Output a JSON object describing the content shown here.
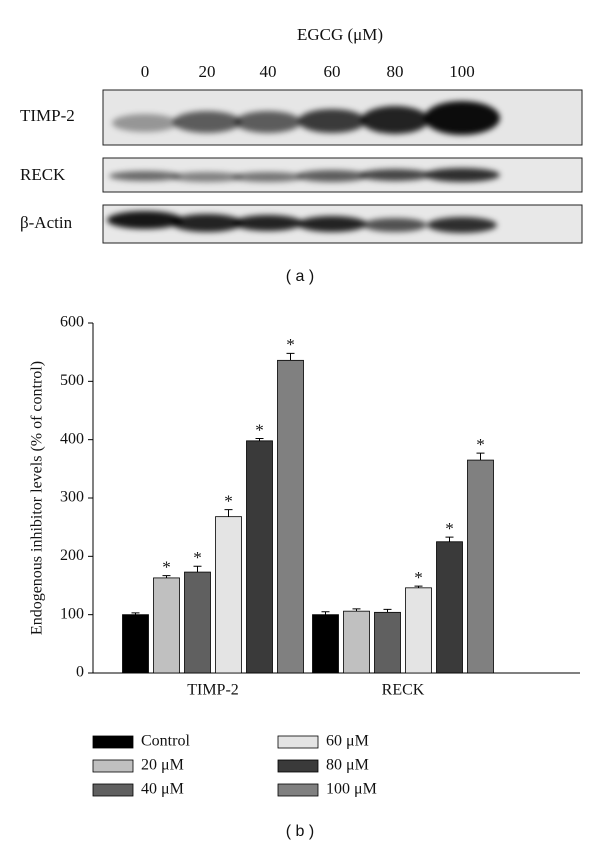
{
  "blot": {
    "treatment_label": "EGCG (μM)",
    "lanes": [
      "0",
      "20",
      "40",
      "60",
      "80",
      "100"
    ],
    "rows": [
      "TIMP-2",
      "RECK",
      "β-Actin"
    ],
    "panel_label": "( a )"
  },
  "chart_data": {
    "type": "bar",
    "panel_label": "( b )",
    "ylabel": "Endogenous inhibitor levels (% of control)",
    "categories": [
      "TIMP-2",
      "RECK"
    ],
    "ylim": [
      0,
      600
    ],
    "yticks": [
      0,
      100,
      200,
      300,
      400,
      500,
      600
    ],
    "series": [
      {
        "name": "Control",
        "color": "#000000",
        "values": [
          100,
          100
        ],
        "errors": [
          3,
          5
        ],
        "labels": [
          null,
          null
        ]
      },
      {
        "name": "20 μM",
        "color": "#c0c0c0",
        "values": [
          163,
          106
        ],
        "errors": [
          4,
          4
        ],
        "labels": [
          "*",
          null
        ]
      },
      {
        "name": "40 μM",
        "color": "#606060",
        "values": [
          173,
          104
        ],
        "errors": [
          10,
          5
        ],
        "labels": [
          "*",
          null
        ]
      },
      {
        "name": "60 μM",
        "color": "#e4e4e4",
        "values": [
          268,
          146
        ],
        "errors": [
          12,
          3
        ],
        "labels": [
          "*",
          "*"
        ]
      },
      {
        "name": "80 μM",
        "color": "#3a3a3a",
        "values": [
          398,
          225
        ],
        "errors": [
          4,
          8
        ],
        "labels": [
          "*",
          "*"
        ]
      },
      {
        "name": "100 μM",
        "color": "#808080",
        "values": [
          536,
          365
        ],
        "errors": [
          12,
          12
        ],
        "labels": [
          "*",
          "*"
        ]
      }
    ]
  }
}
